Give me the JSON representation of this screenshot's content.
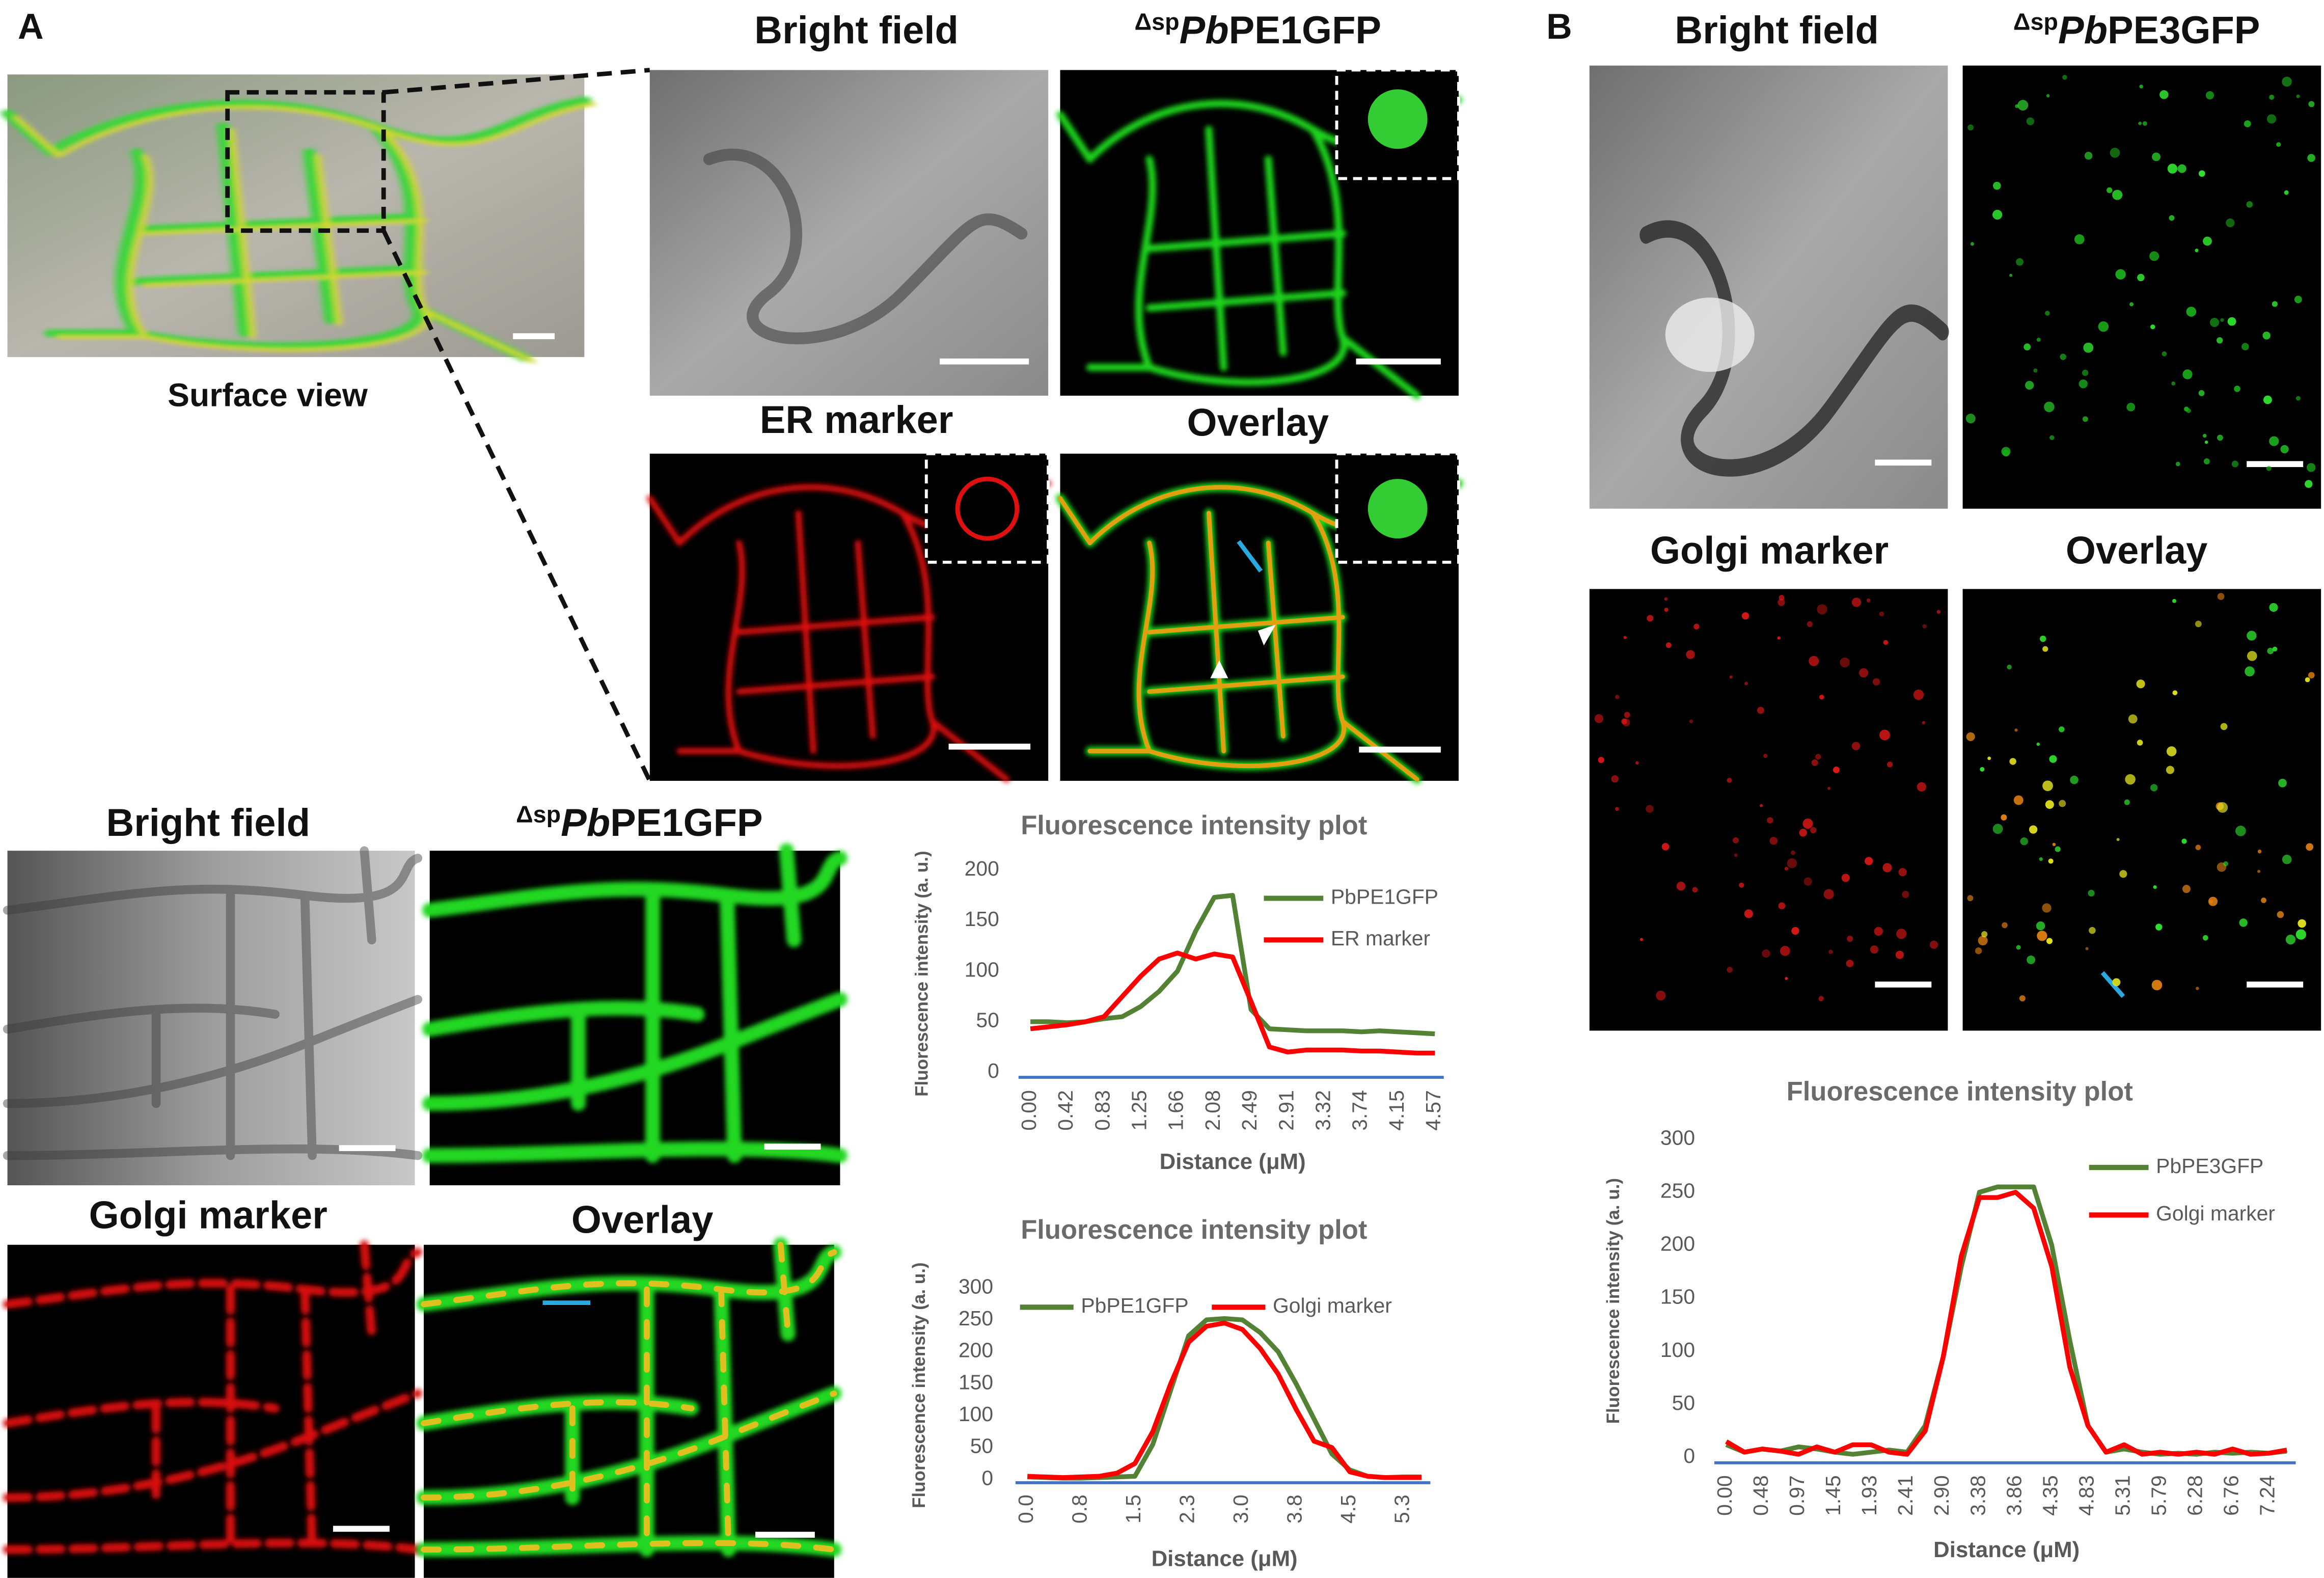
{
  "figure": {
    "panel_labels": [
      "A",
      "B"
    ],
    "surface_caption": "Surface view",
    "image_titles": [
      {
        "text": "Bright field"
      },
      {
        "sup": "Δsp",
        "italic": "Pb",
        "text": "PE1GFP"
      },
      {
        "text": "ER marker"
      },
      {
        "text": "Overlay"
      },
      {
        "text": "Bright field"
      },
      {
        "sup": "Δsp",
        "italic": "Pb",
        "text": "PE1GFP"
      },
      {
        "text": "Golgi marker"
      },
      {
        "text": "Overlay"
      },
      {
        "text": "Bright field"
      },
      {
        "sup": "Δsp",
        "italic": "Pb",
        "text": "PE3GFP"
      },
      {
        "text": "Golgi marker"
      },
      {
        "text": "Overlay"
      }
    ]
  },
  "chart_data": [
    {
      "type": "line",
      "title": "Fluorescence intensity plot",
      "x_label": "Distance (μM)",
      "y_label": "Fluorescence intensity (a. u.)",
      "categories": [
        "0.00",
        null,
        "0.42",
        null,
        "0.83",
        null,
        "1.25",
        null,
        "1.66",
        null,
        "2.08",
        null,
        "2.49",
        null,
        "2.91",
        null,
        "3.32",
        null,
        "3.74",
        null,
        "4.15",
        null,
        "4.57"
      ],
      "series": [
        {
          "name": "PbPE1GFP",
          "color": "#548235",
          "values": [
            50,
            50,
            49,
            50,
            53,
            55,
            65,
            80,
            100,
            140,
            173,
            175,
            62,
            43,
            42,
            41,
            41,
            41,
            40,
            41,
            40,
            39,
            38
          ]
        },
        {
          "name": "ER marker",
          "color": "#ff0000",
          "values": [
            43,
            45,
            47,
            50,
            55,
            75,
            95,
            112,
            118,
            112,
            117,
            114,
            70,
            25,
            20,
            22,
            22,
            22,
            21,
            21,
            20,
            19,
            19
          ]
        }
      ],
      "ylim": [
        -5,
        200
      ],
      "yticks": [
        0,
        50,
        100,
        150,
        200
      ],
      "grid": false,
      "legend": "upper right"
    },
    {
      "type": "line",
      "title": "Fluorescence intensity plot",
      "x_label": "Distance (μM)",
      "y_label": "Fluorescence intensity (a. u.)",
      "categories": [
        "0.0",
        null,
        null,
        "0.8",
        null,
        null,
        "1.5",
        null,
        null,
        "2.3",
        null,
        null,
        "3.0",
        null,
        null,
        "3.8",
        null,
        null,
        "4.5",
        null,
        null,
        "5.3",
        null
      ],
      "series": [
        {
          "name": "PbPE1GFP",
          "color": "#548235",
          "values": [
            4,
            3,
            2,
            2,
            3,
            4,
            5,
            55,
            140,
            225,
            250,
            252,
            250,
            230,
            200,
            150,
            95,
            40,
            15,
            5,
            3,
            4,
            4
          ]
        },
        {
          "name": "Golgi marker",
          "color": "#ff0000",
          "values": [
            5,
            4,
            3,
            4,
            5,
            10,
            25,
            75,
            150,
            215,
            240,
            245,
            235,
            205,
            165,
            110,
            60,
            50,
            12,
            5,
            3,
            3,
            3
          ]
        }
      ],
      "ylim": [
        -5,
        300
      ],
      "yticks": [
        0,
        50,
        100,
        150,
        200,
        250,
        300
      ],
      "grid": false,
      "legend": "top"
    },
    {
      "type": "line",
      "title": "Fluorescence intensity plot",
      "x_label": "Distance (μM)",
      "y_label": "Fluorescence intensity (a. u.)",
      "categories": [
        "0.00",
        null,
        "0.48",
        null,
        "0.97",
        null,
        "1.45",
        null,
        "1.93",
        null,
        "2.41",
        null,
        "2.90",
        null,
        "3.38",
        null,
        "3.86",
        null,
        "4.35",
        null,
        "4.83",
        null,
        "5.31",
        null,
        "5.79",
        null,
        "6.28",
        null,
        "6.76",
        null,
        "7.24",
        null
      ],
      "series": [
        {
          "name": "PbPE3GFP",
          "color": "#548235",
          "values": [
            12,
            5,
            8,
            6,
            10,
            8,
            5,
            3,
            5,
            7,
            5,
            30,
            95,
            180,
            250,
            255,
            255,
            255,
            200,
            110,
            30,
            5,
            8,
            5,
            3,
            4,
            3,
            5,
            4,
            5,
            4,
            6
          ]
        },
        {
          "name": "Golgi marker",
          "color": "#ff0000",
          "values": [
            15,
            5,
            8,
            6,
            3,
            10,
            5,
            12,
            12,
            5,
            3,
            25,
            95,
            190,
            245,
            245,
            250,
            235,
            180,
            85,
            30,
            5,
            12,
            3,
            5,
            3,
            5,
            3,
            8,
            3,
            4,
            7
          ]
        }
      ],
      "ylim": [
        -5,
        300
      ],
      "yticks": [
        0,
        50,
        100,
        150,
        200,
        250,
        300
      ],
      "grid": false,
      "legend": "upper right"
    }
  ]
}
